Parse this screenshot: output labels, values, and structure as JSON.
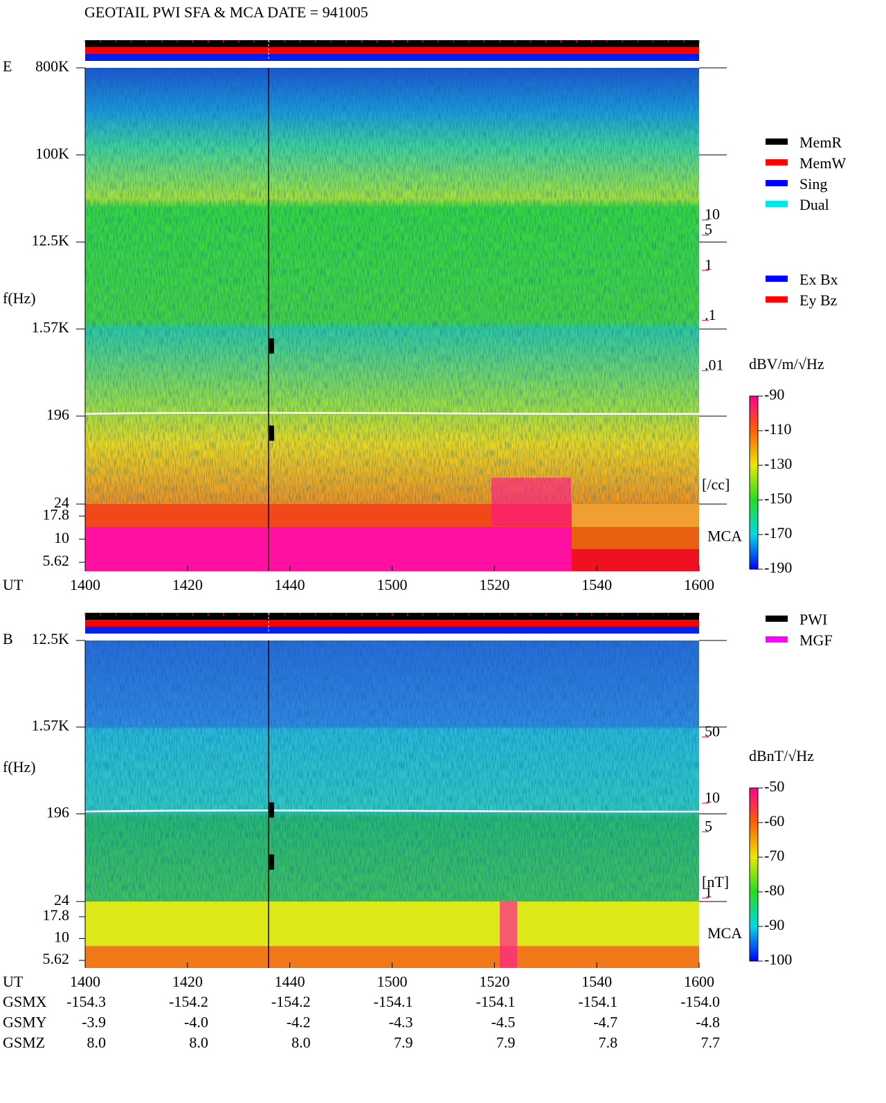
{
  "title": "GEOTAIL  PWI SFA & MCA   DATE = 941005",
  "chart_data": [
    {
      "type": "spectrogram",
      "panel_label": "E",
      "y_label": "f(Hz)",
      "x_label": "UT",
      "x": [
        "1400",
        "1420",
        "1440",
        "1500",
        "1520",
        "1540",
        "1600"
      ],
      "log_y": true,
      "ylim": [
        24,
        800000
      ],
      "yticks": [
        {
          "value": 800000,
          "label": "800K"
        },
        {
          "value": 100000,
          "label": "100K"
        },
        {
          "value": 12500,
          "label": "12.5K"
        },
        {
          "value": 1570,
          "label": "1.57K"
        },
        196,
        24
      ],
      "mca_label": "MCA",
      "mca_ylim": [
        4.5,
        24
      ],
      "mca_yticks": [
        17.8,
        10,
        5.62
      ],
      "y2_label": "[/cc]",
      "y2_color": "#ff0000",
      "y2lim": [
        2.2e-05,
        10700
      ],
      "y2ticks": [
        10,
        5,
        1,
        {
          "value": 0.1,
          "label": ".1"
        },
        {
          "value": 0.01,
          "label": ".01"
        }
      ],
      "colorbar": {
        "label": "dBV/m/√Hz",
        "lim": [
          -190,
          -90
        ],
        "ticks": [
          -90,
          -110,
          -130,
          -150,
          -170,
          -190
        ]
      },
      "legend": [
        {
          "name": "MemR",
          "color": "#000000"
        },
        {
          "name": "MemW",
          "color": "#ff0000"
        },
        {
          "name": "Sing",
          "color": "#0000ff"
        },
        {
          "name": "Dual",
          "color": "#00e8e8"
        }
      ],
      "legend2": [
        {
          "name": "Ex Bx",
          "color": "#0000ff"
        },
        {
          "name": "Ey Bz",
          "color": "#ff0000"
        }
      ]
    },
    {
      "type": "spectrogram",
      "panel_label": "B",
      "y_label": "f(Hz)",
      "x_label": "UT",
      "x": [
        "1400",
        "1420",
        "1440",
        "1500",
        "1520",
        "1540",
        "1600"
      ],
      "log_y": true,
      "ylim": [
        24,
        12500
      ],
      "yticks": [
        {
          "value": 12500,
          "label": "12.5K"
        },
        {
          "value": 1570,
          "label": "1.57K"
        },
        196,
        24
      ],
      "mca_label": "MCA",
      "mca_ylim": [
        4.6,
        26.6
      ],
      "mca_yticks": [
        17.8,
        10,
        5.62
      ],
      "y2_label": "[nT]",
      "y2_color": "#ff0000",
      "y2lim": [
        0.92,
        519
      ],
      "y2ticks": [
        50,
        10,
        5,
        1
      ],
      "colorbar": {
        "label": "dBnT/√Hz",
        "lim": [
          -100,
          -50
        ],
        "ticks": [
          -50,
          -60,
          -70,
          -80,
          -90,
          -100
        ]
      },
      "legend": [
        {
          "name": "PWI",
          "color": "#000000"
        },
        {
          "name": "MGF",
          "color": "#ff00ff"
        }
      ]
    }
  ],
  "orbit": {
    "rows": [
      {
        "label": "GSMX",
        "values": [
          "-154.3",
          "-154.2",
          "-154.2",
          "-154.1",
          "-154.1",
          "-154.1",
          "-154.0"
        ]
      },
      {
        "label": "GSMY",
        "values": [
          "-3.9",
          "-4.0",
          "-4.2",
          "-4.3",
          "-4.5",
          "-4.7",
          "-4.8"
        ]
      },
      {
        "label": "GSMZ",
        "values": [
          "8.0",
          "8.0",
          "8.0",
          "7.9",
          "7.9",
          "7.8",
          "7.7"
        ]
      }
    ]
  }
}
